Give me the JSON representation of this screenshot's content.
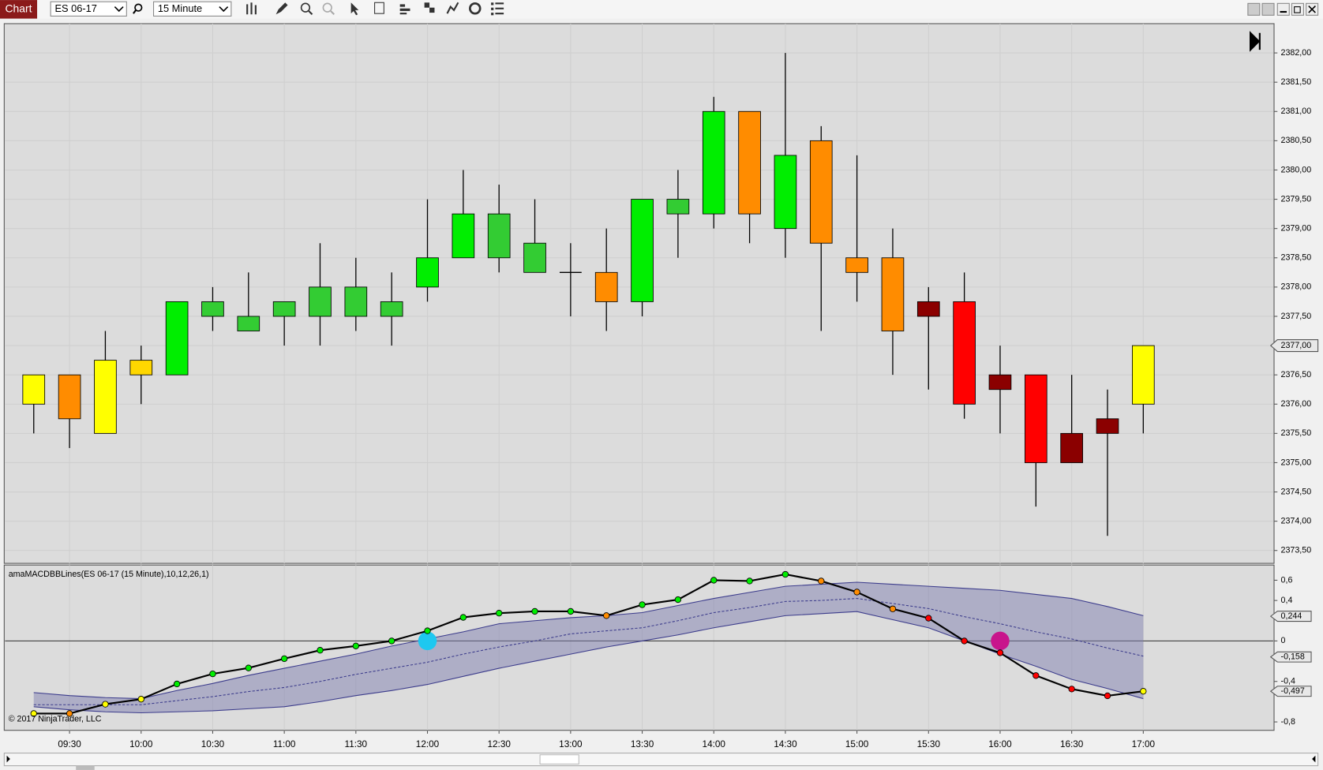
{
  "toolbar": {
    "tab": "Chart",
    "instrument": "ES 06-17",
    "interval": "15 Minute"
  },
  "chart_data": [
    {
      "type": "candlestick",
      "categories": [
        null,
        "09:30",
        null,
        "10:00",
        null,
        "10:30",
        null,
        "11:00",
        null,
        "11:30",
        null,
        "12:00",
        null,
        "12:30",
        null,
        "13:00",
        null,
        "13:30",
        null,
        "14:00",
        null,
        "14:30",
        null,
        "15:00",
        null,
        "15:30",
        null,
        "16:00",
        null,
        "16:30",
        null,
        "17:00"
      ],
      "open": [
        2376.0,
        2376.5,
        2375.5,
        2376.5,
        2376.5,
        2377.5,
        2377.25,
        2377.5,
        2377.5,
        2377.5,
        2377.5,
        2378.0,
        2378.5,
        2378.5,
        2378.25,
        2378.25,
        2378.25,
        2377.75,
        2379.25,
        2379.25,
        2381.0,
        2379.0,
        2380.5,
        2378.5,
        2378.5,
        2377.75,
        2377.75,
        2376.5,
        2376.5,
        2375.5,
        2375.75,
        2376.0
      ],
      "high": [
        2376.5,
        2376.5,
        2377.25,
        2377.0,
        2377.75,
        2378.0,
        2378.25,
        2377.75,
        2378.75,
        2378.5,
        2378.25,
        2379.5,
        2380.0,
        2379.75,
        2379.5,
        2378.75,
        2379.0,
        2379.5,
        2380.0,
        2381.25,
        2381.0,
        2382.0,
        2380.75,
        2380.25,
        2379.0,
        2378.0,
        2378.25,
        2377.0,
        2376.5,
        2376.5,
        2376.25,
        2377.0
      ],
      "low": [
        2375.5,
        2375.25,
        2375.5,
        2376.0,
        2376.5,
        2377.25,
        2377.25,
        2377.0,
        2377.0,
        2377.25,
        2377.0,
        2377.75,
        2378.5,
        2378.25,
        2378.25,
        2377.5,
        2377.25,
        2377.5,
        2378.5,
        2379.0,
        2378.75,
        2378.5,
        2377.25,
        2377.75,
        2376.5,
        2376.25,
        2375.75,
        2375.5,
        2374.25,
        2375.0,
        2373.75,
        2375.5
      ],
      "close": [
        2376.5,
        2375.75,
        2376.75,
        2376.75,
        2377.75,
        2377.75,
        2377.5,
        2377.75,
        2378.0,
        2378.0,
        2377.75,
        2378.5,
        2379.25,
        2379.25,
        2378.75,
        2378.25,
        2377.75,
        2379.5,
        2379.5,
        2381.0,
        2379.25,
        2380.25,
        2378.75,
        2378.25,
        2377.25,
        2377.5,
        2376.0,
        2376.25,
        2375.0,
        2375.0,
        2375.5,
        2377.0
      ],
      "colors": [
        "#ffff00",
        "#ff8c00",
        "#ffff00",
        "#ffd700",
        "#00ee00",
        "#33cc33",
        "#33cc33",
        "#33cc33",
        "#33cc33",
        "#33cc33",
        "#33cc33",
        "#00ee00",
        "#00ee00",
        "#33cc33",
        "#33cc33",
        "#000000",
        "#ff8c00",
        "#00ee00",
        "#33cc33",
        "#00ee00",
        "#ff8c00",
        "#00ee00",
        "#ff8c00",
        "#ff8c00",
        "#ff8c00",
        "#8b0000",
        "#ff0000",
        "#8b0000",
        "#ff0000",
        "#8b0000",
        "#8b0000",
        "#ffff00"
      ],
      "ylim": [
        2373.28,
        2382.5
      ],
      "yticks": [
        {
          "value": 2373.5,
          "label": "2373,50"
        },
        {
          "value": 2374,
          "label": "2374,00"
        },
        {
          "value": 2374.5,
          "label": "2374,50"
        },
        {
          "value": 2375,
          "label": "2375,00"
        },
        {
          "value": 2375.5,
          "label": "2375,50"
        },
        {
          "value": 2376,
          "label": "2376,00"
        },
        {
          "value": 2376.5,
          "label": "2376,50"
        },
        {
          "value": 2377,
          "label": "2377,00"
        },
        {
          "value": 2377.5,
          "label": "2377,50"
        },
        {
          "value": 2378,
          "label": "2378,00"
        },
        {
          "value": 2378.5,
          "label": "2378,50"
        },
        {
          "value": 2379,
          "label": "2379,00"
        },
        {
          "value": 2379.5,
          "label": "2379,50"
        },
        {
          "value": 2380,
          "label": "2380,00"
        },
        {
          "value": 2380.5,
          "label": "2380,50"
        },
        {
          "value": 2381,
          "label": "2381,00"
        },
        {
          "value": 2381.5,
          "label": "2381,50"
        },
        {
          "value": 2382,
          "label": "2382,00"
        }
      ],
      "last_price": {
        "value": 2377,
        "label": "2377,00"
      },
      "grid": true
    },
    {
      "type": "line",
      "title": "amaMACDBBLines(ES 06-17 (15 Minute),10,12,26,1)",
      "annotation": "© 2017 NinjaTrader, LLC",
      "series": [
        {
          "role": "band",
          "color": "#3c3c8c",
          "values": [
            -0.51,
            -0.54,
            -0.56,
            -0.57,
            -0.49,
            -0.42,
            -0.34,
            -0.27,
            -0.2,
            -0.13,
            -0.05,
            0.02,
            0.09,
            0.17,
            0.2,
            0.23,
            0.25,
            0.28,
            0.35,
            0.42,
            0.48,
            0.54,
            0.56,
            0.58,
            0.56,
            0.54,
            0.52,
            0.5,
            0.46,
            0.42,
            0.34,
            0.25
          ]
        },
        {
          "role": "band",
          "color": "#3c3c8c",
          "values": [
            -0.65,
            -0.68,
            -0.7,
            -0.71,
            -0.7,
            -0.69,
            -0.67,
            -0.65,
            -0.6,
            -0.54,
            -0.49,
            -0.43,
            -0.35,
            -0.27,
            -0.2,
            -0.13,
            -0.06,
            0,
            0.06,
            0.13,
            0.19,
            0.25,
            0.27,
            0.29,
            0.21,
            0.13,
            0,
            -0.13,
            -0.25,
            -0.38,
            -0.47,
            -0.57
          ]
        },
        {
          "role": "average",
          "color": "#3c3c8c",
          "values": [
            -0.63,
            -0.63,
            -0.63,
            -0.63,
            -0.59,
            -0.55,
            -0.5,
            -0.46,
            -0.4,
            -0.33,
            -0.27,
            -0.21,
            -0.13,
            -0.06,
            0,
            0.07,
            0.1,
            0.13,
            0.2,
            0.28,
            0.33,
            0.39,
            0.4,
            0.42,
            0.37,
            0.32,
            0.24,
            0.17,
            0.09,
            0.02,
            -0.07,
            -0.15
          ]
        },
        {
          "role": "macd",
          "color": "#000000",
          "values": [
            -0.717,
            -0.717,
            -0.625,
            -0.575,
            -0.425,
            -0.325,
            -0.267,
            -0.175,
            -0.092,
            -0.05,
            0,
            0.1,
            0.233,
            0.275,
            0.292,
            0.292,
            0.25,
            0.358,
            0.408,
            0.6,
            0.592,
            0.658,
            0.592,
            0.483,
            0.317,
            0.225,
            0,
            -0.117,
            -0.342,
            -0.475,
            -0.542,
            -0.497
          ],
          "dot_colors": [
            "#ffff00",
            "#ff8c00",
            "#ffff00",
            "#ffff00",
            "#00ee00",
            "#00ee00",
            "#00ee00",
            "#00ee00",
            "#00ee00",
            "#00ee00",
            "#00ee00",
            "#00ee00",
            "#00ee00",
            "#00ee00",
            "#00ee00",
            "#00ee00",
            "#ff8c00",
            "#00ee00",
            "#00ee00",
            "#00ee00",
            "#00ee00",
            "#00ee00",
            "#ff8c00",
            "#ff8c00",
            "#ff8c00",
            "#ff0000",
            "#ff0000",
            "#ff0000",
            "#ff0000",
            "#ff0000",
            "#ff0000",
            "#ffff00"
          ]
        },
        {
          "role": "signal",
          "color": "#1ec8f0",
          "values": [
            null,
            null,
            null,
            null,
            null,
            null,
            null,
            null,
            null,
            null,
            null,
            0,
            null,
            null,
            null,
            null,
            null,
            null,
            null,
            null,
            null,
            null,
            null,
            null,
            null,
            null,
            null,
            null,
            null,
            null,
            null,
            null
          ]
        },
        {
          "role": "signal",
          "color": "#c8148c",
          "values": [
            null,
            null,
            null,
            null,
            null,
            null,
            null,
            null,
            null,
            null,
            null,
            null,
            null,
            null,
            null,
            null,
            null,
            null,
            null,
            null,
            null,
            null,
            null,
            null,
            null,
            null,
            null,
            0,
            null,
            null,
            null,
            null
          ]
        }
      ],
      "ylim": [
        -0.883,
        0.75
      ],
      "yticks": [
        {
          "value": 0.6,
          "label": "0,6"
        },
        {
          "value": 0.4,
          "label": "0,4"
        },
        {
          "value": 0,
          "label": "0"
        },
        {
          "value": -0.4,
          "label": "-0,4"
        },
        {
          "value": -0.8,
          "label": "-0,8"
        }
      ],
      "value_markers": [
        {
          "value": 0.244,
          "label": "0,244"
        },
        {
          "value": -0.158,
          "label": "-0,158"
        },
        {
          "value": -0.497,
          "label": "-0,497"
        }
      ],
      "reference_line": 0
    }
  ]
}
